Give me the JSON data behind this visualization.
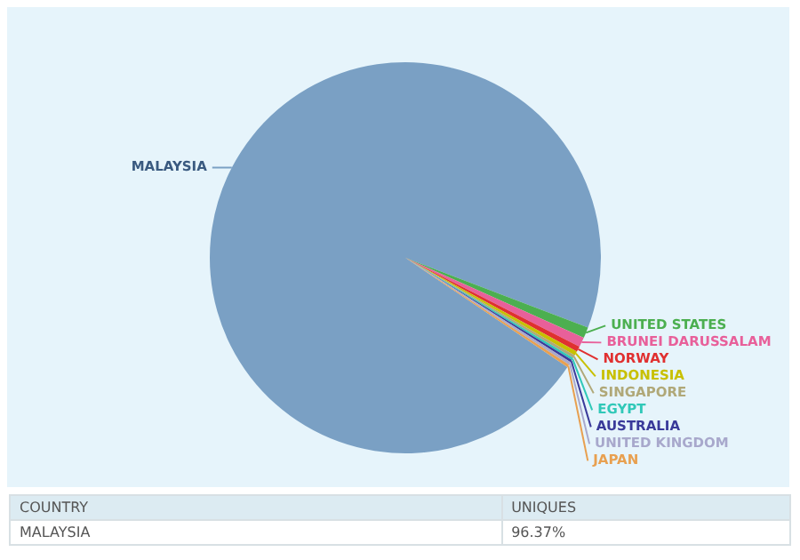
{
  "chart_data": {
    "type": "pie",
    "categories": [
      "MALAYSIA",
      "UNITED STATES",
      "BRUNEI DARUSSALAM",
      "NORWAY",
      "INDONESIA",
      "SINGAPORE",
      "EGYPT",
      "AUSTRALIA",
      "UNITED KINGDOM",
      "JAPAN"
    ],
    "values": [
      96.37,
      0.9,
      0.8,
      0.45,
      0.35,
      0.25,
      0.2,
      0.2,
      0.25,
      0.23
    ],
    "colors": [
      "#7aa0c4",
      "#4caf50",
      "#e8609a",
      "#e03030",
      "#c8c000",
      "#b0a878",
      "#30c8b8",
      "#3a3a9a",
      "#a8a8cc",
      "#e8a050"
    ],
    "value_labels": [
      "96.37%",
      null,
      null,
      null,
      null,
      null,
      null,
      null,
      null,
      null
    ],
    "annotations": [
      "COUNTRY",
      "UNIQUES"
    ],
    "legend": false
  }
}
